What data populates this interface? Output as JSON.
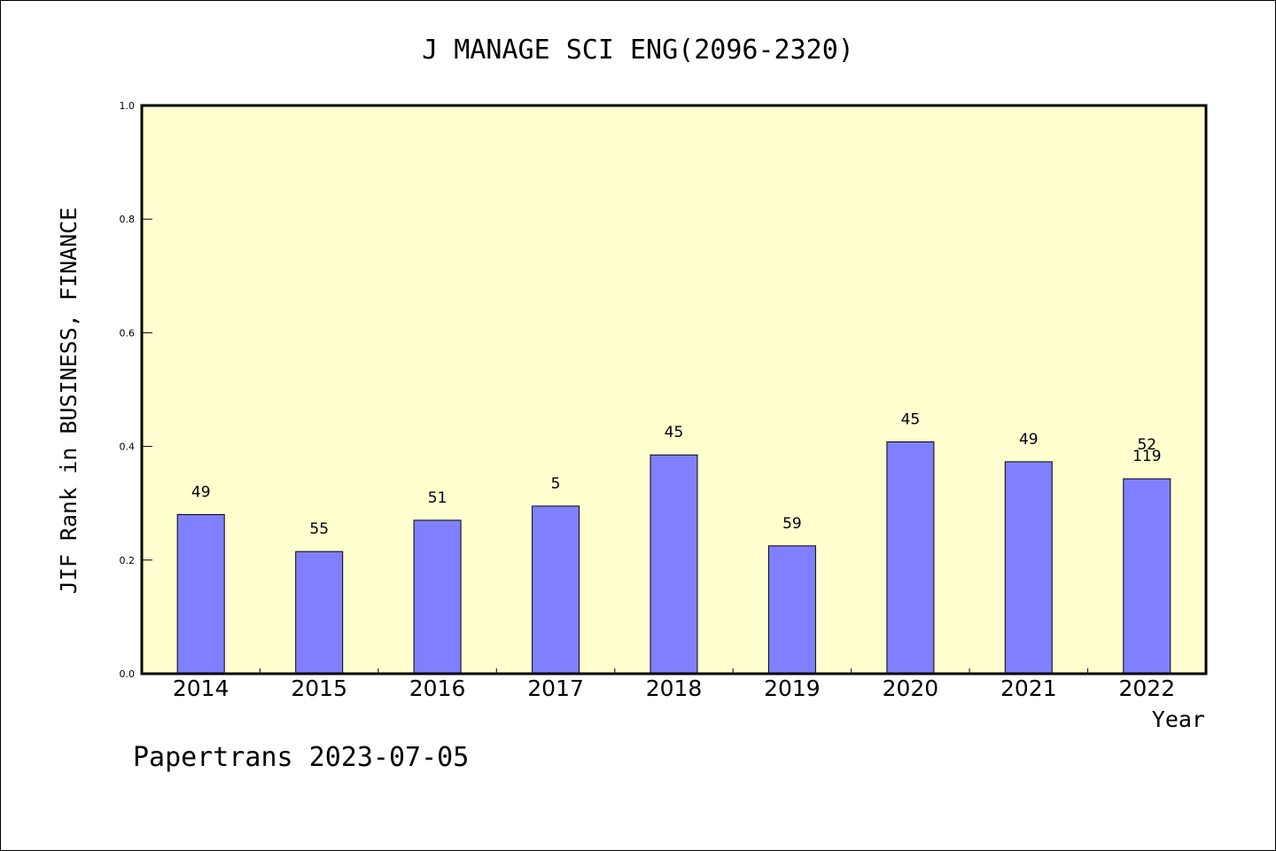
{
  "colors": {
    "plot_background": "#ffffd0",
    "bar_fill": "#8080ff",
    "bar_stroke": "#000000",
    "axis": "#000000"
  },
  "chart_data": {
    "type": "bar",
    "title": "J MANAGE SCI ENG(2096-2320)",
    "xlabel": "Year",
    "ylabel": "JIF Rank in BUSINESS, FINANCE",
    "ylim": [
      0,
      1.0
    ],
    "yticks": [
      "0.0",
      "0.2",
      "0.4",
      "0.6",
      "0.8",
      "1.0"
    ],
    "grid": false,
    "categories": [
      "2014",
      "2015",
      "2016",
      "2017",
      "2018",
      "2019",
      "2020",
      "2021",
      "2022"
    ],
    "values": [
      0.28,
      0.215,
      0.27,
      0.295,
      0.385,
      0.225,
      0.408,
      0.373,
      0.343
    ],
    "bar_labels": [
      [
        "49"
      ],
      [
        "55"
      ],
      [
        "51"
      ],
      [
        "5"
      ],
      [
        "45"
      ],
      [
        "59"
      ],
      [
        "45"
      ],
      [
        "49"
      ],
      [
        "52",
        "119"
      ]
    ]
  },
  "footer": {
    "watermark": "Papertrans 2023-07-05"
  }
}
